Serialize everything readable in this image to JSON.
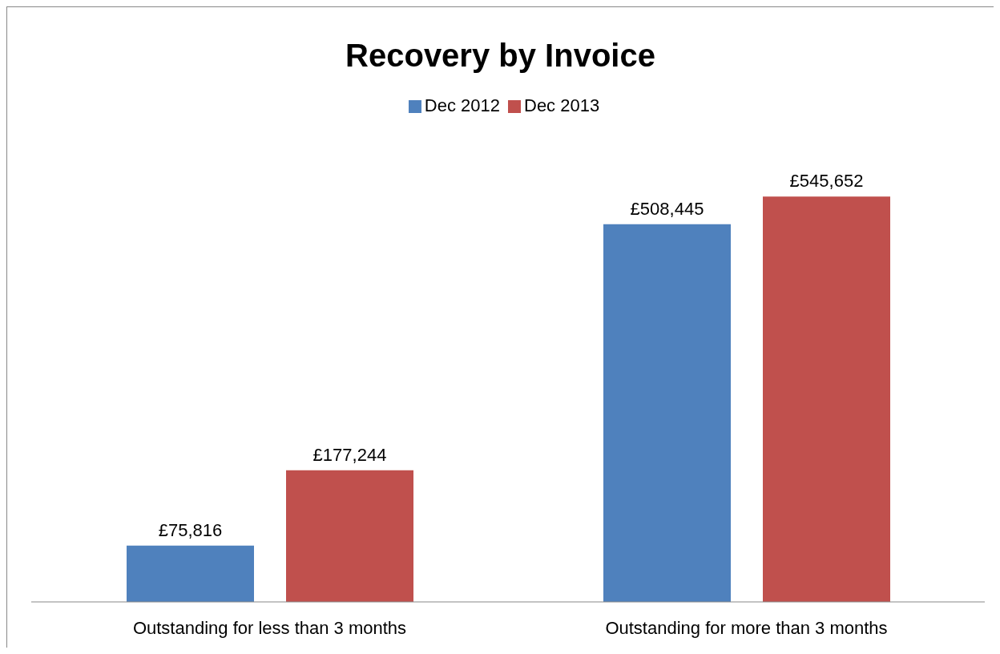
{
  "chart_data": {
    "type": "bar",
    "title": "Recovery by Invoice",
    "categories": [
      "Outstanding for less than 3 months",
      "Outstanding for more than 3 months"
    ],
    "series": [
      {
        "name": "Dec 2012",
        "color": "#4f81bd",
        "values": [
          75816,
          508445
        ],
        "value_labels": [
          "£75,816",
          "£508,445"
        ]
      },
      {
        "name": "Dec 2013",
        "color": "#c0504d",
        "values": [
          177244,
          545652
        ],
        "value_labels": [
          "£177,244",
          "£545,652"
        ]
      }
    ],
    "legend": "top",
    "grid": false
  }
}
